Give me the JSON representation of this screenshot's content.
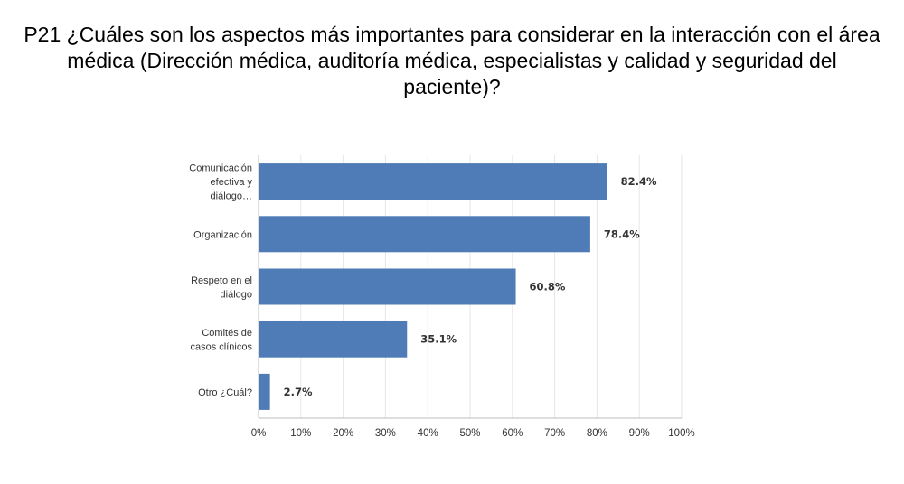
{
  "title": "P21 ¿Cuáles son los aspectos más importantes para considerar en la interacción con el área médica (Dirección médica, auditoría médica, especialistas y calidad y seguridad del paciente)?",
  "colors": {
    "bar": "#4f7cb6",
    "grid": "#e6e6e6",
    "axis": "#bdbdbd",
    "text": "#333333"
  },
  "chart_data": {
    "type": "bar",
    "orientation": "horizontal",
    "categories": [
      [
        "Comunicación",
        "efectiva y",
        "diálogo…"
      ],
      [
        "Organización"
      ],
      [
        "Respeto en el",
        "diálogo"
      ],
      [
        "Comités de",
        "casos clínicos"
      ],
      [
        "Otro ¿Cuál?"
      ]
    ],
    "values": [
      82.4,
      78.4,
      60.8,
      35.1,
      2.7
    ],
    "value_labels": [
      "82.4%",
      "78.4%",
      "60.8%",
      "35.1%",
      "2.7%"
    ],
    "xlim": [
      0,
      100
    ],
    "x_ticks": [
      0,
      10,
      20,
      30,
      40,
      50,
      60,
      70,
      80,
      90,
      100
    ],
    "x_tick_labels": [
      "0%",
      "10%",
      "20%",
      "30%",
      "40%",
      "50%",
      "60%",
      "70%",
      "80%",
      "90%",
      "100%"
    ],
    "grid": true
  }
}
